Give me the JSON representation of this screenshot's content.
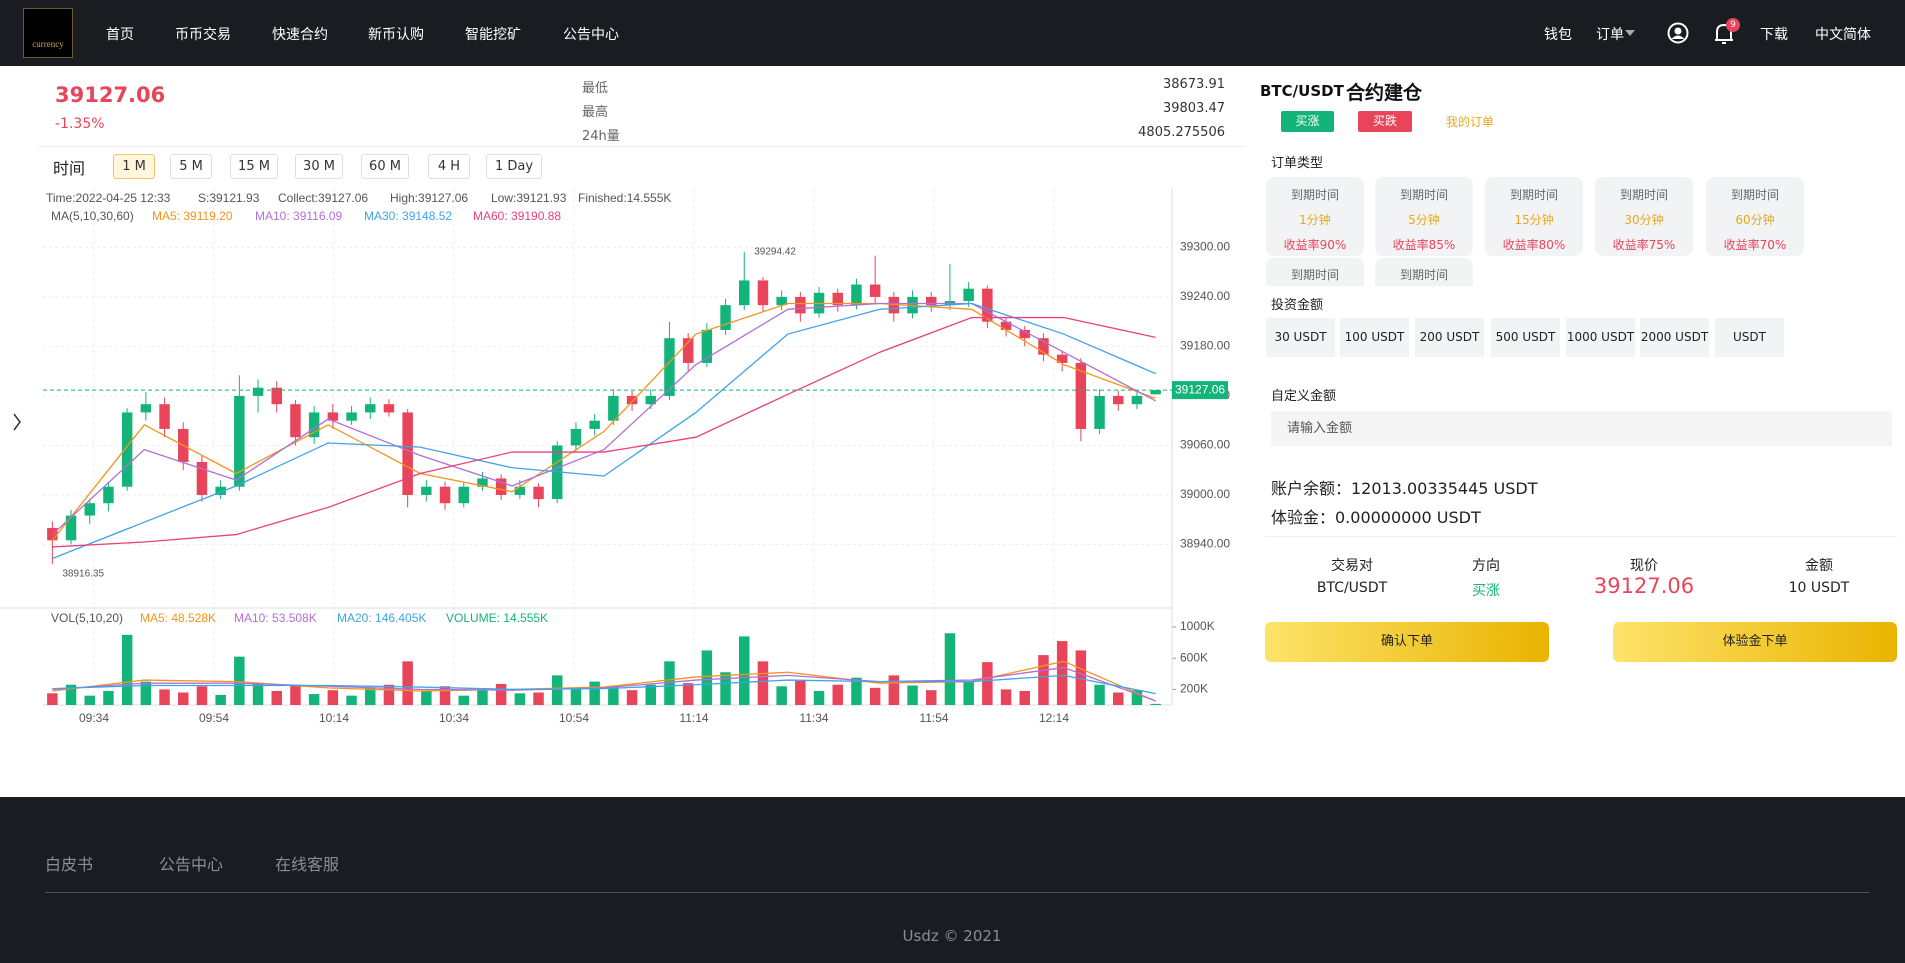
{
  "header": {
    "logo": "currency",
    "nav": [
      "首页",
      "币币交易",
      "快速合约",
      "新币认购",
      "智能挖矿",
      "公告中心"
    ],
    "right": [
      "钱包",
      "订单",
      "下载",
      "中文简体"
    ],
    "badge": 9
  },
  "ticker": {
    "price": 39127.06,
    "change": "-1.35%",
    "stats": [
      {
        "label": "最低",
        "value": 38673.91
      },
      {
        "label": "最高",
        "value": 39803.47
      },
      {
        "label": "24h量",
        "value": 4805.275506
      }
    ]
  },
  "timeframes": [
    "时间",
    "1 M",
    "5 M",
    "15 M",
    "30 M",
    "60 M",
    "4 H",
    "1 Day"
  ],
  "chart_data": {
    "type": "candlestick",
    "info": [
      "Time:2022-04-25 12:33",
      "S:39121.93",
      "Collect:39127.06",
      "High:39127.06",
      "Low:39121.93",
      "Finished:14.555K"
    ],
    "ma_title": "MA(5,10,30,60)",
    "vol_title": "VOL(5,10,20)",
    "up_color": "#13b47a",
    "down_color": "#e8445a",
    "candles": [
      [
        38960,
        38968,
        38916.35,
        38945
      ],
      [
        38945,
        38982,
        38940,
        38975
      ],
      [
        38975,
        38995,
        38965,
        38990
      ],
      [
        38990,
        39015,
        38980,
        39010
      ],
      [
        39010,
        39105,
        39005,
        39100
      ],
      [
        39100,
        39125,
        39090,
        39110
      ],
      [
        39110,
        39118,
        39070,
        39080
      ],
      [
        39080,
        39088,
        39030,
        39040
      ],
      [
        39040,
        39048,
        38992,
        39000
      ],
      [
        39000,
        39018,
        38995,
        39010
      ],
      [
        39010,
        39145,
        39005,
        39120
      ],
      [
        39120,
        39140,
        39100,
        39130
      ],
      [
        39130,
        39138,
        39100,
        39110
      ],
      [
        39110,
        39115,
        39060,
        39070
      ],
      [
        39070,
        39108,
        39062,
        39100
      ],
      [
        39100,
        39110,
        39080,
        39090
      ],
      [
        39090,
        39108,
        39085,
        39100
      ],
      [
        39100,
        39118,
        39092,
        39110
      ],
      [
        39110,
        39116,
        39095,
        39100
      ],
      [
        39100,
        39104,
        38985,
        39000
      ],
      [
        39000,
        39018,
        38992,
        39010
      ],
      [
        39010,
        39016,
        38982,
        38990
      ],
      [
        38990,
        39016,
        38985,
        39010
      ],
      [
        39010,
        39028,
        39005,
        39020
      ],
      [
        39020,
        39025,
        38994,
        39000
      ],
      [
        39000,
        39018,
        38995,
        39010
      ],
      [
        39010,
        39014,
        38985,
        38995
      ],
      [
        38995,
        39065,
        38990,
        39060
      ],
      [
        39060,
        39088,
        39052,
        39080
      ],
      [
        39080,
        39098,
        39072,
        39090
      ],
      [
        39090,
        39128,
        39085,
        39120
      ],
      [
        39120,
        39126,
        39102,
        39110
      ],
      [
        39110,
        39128,
        39104,
        39120
      ],
      [
        39120,
        39210,
        39115,
        39190
      ],
      [
        39190,
        39196,
        39150,
        39160
      ],
      [
        39160,
        39208,
        39155,
        39200
      ],
      [
        39200,
        39238,
        39194,
        39230
      ],
      [
        39230,
        39294.42,
        39224,
        39260
      ],
      [
        39260,
        39264,
        39222,
        39230
      ],
      [
        39230,
        39248,
        39224,
        39240
      ],
      [
        39240,
        39246,
        39210,
        39220
      ],
      [
        39220,
        39252,
        39215,
        39245
      ],
      [
        39245,
        39250,
        39222,
        39230
      ],
      [
        39230,
        39262,
        39225,
        39255
      ],
      [
        39255,
        39290,
        39232,
        39240
      ],
      [
        39240,
        39246,
        39210,
        39220
      ],
      [
        39220,
        39248,
        39214,
        39240
      ],
      [
        39240,
        39246,
        39222,
        39230
      ],
      [
        39230,
        39280,
        39224,
        39235
      ],
      [
        39235,
        39258,
        39228,
        39250
      ],
      [
        39250,
        39254,
        39202,
        39210
      ],
      [
        39210,
        39216,
        39192,
        39200
      ],
      [
        39200,
        39205,
        39180,
        39190
      ],
      [
        39190,
        39196,
        39162,
        39170
      ],
      [
        39170,
        39175,
        39150,
        39160
      ],
      [
        39160,
        39166,
        39065,
        39080
      ],
      [
        39080,
        39128,
        39074,
        39120
      ],
      [
        39120,
        39126,
        39102,
        39110
      ],
      [
        39110,
        39126,
        39104,
        39120
      ],
      [
        39121.93,
        39127.06,
        39121.93,
        39127.06
      ]
    ],
    "volumes": [
      150,
      260,
      120,
      180,
      900,
      300,
      200,
      160,
      240,
      130,
      620,
      280,
      180,
      260,
      140,
      190,
      120,
      220,
      260,
      560,
      180,
      240,
      120,
      200,
      270,
      150,
      160,
      380,
      220,
      300,
      240,
      190,
      260,
      560,
      280,
      700,
      420,
      880,
      560,
      240,
      310,
      180,
      260,
      350,
      220,
      380,
      250,
      190,
      920,
      300,
      550,
      200,
      180,
      640,
      820,
      700,
      260,
      160,
      190,
      14.555
    ],
    "ma": [
      {
        "name": "MA5: 39119.20",
        "color": "#f7931a",
        "values": [
          38945,
          39085,
          39026,
          39085,
          39026,
          39004,
          39077,
          39195,
          39232,
          39232,
          39225,
          39158,
          39117
        ]
      },
      {
        "name": "MA10: 39116.09",
        "color": "#b36fd6",
        "values": [
          38952,
          39055,
          39018,
          39092,
          39048,
          39011,
          39055,
          39158,
          39225,
          39232,
          39232,
          39173,
          39114
        ]
      },
      {
        "name": "MA30: 39148.52",
        "color": "#3fa3e8",
        "values": [
          38923,
          38967,
          39011,
          39063,
          39058,
          39033,
          39023,
          39100,
          39195,
          39225,
          39232,
          39195,
          39147
        ]
      },
      {
        "name": "MA60: 39190.88",
        "color": "#e8417f",
        "values": [
          38937,
          38943,
          38952,
          38985,
          39026,
          39052,
          39052,
          39070,
          39122,
          39173,
          39215,
          39215,
          39191
        ]
      }
    ],
    "vol_ma": [
      {
        "name": "MA5: 48.528K",
        "color": "#f7931a",
        "values": [
          180,
          320,
          300,
          220,
          180,
          200,
          230,
          360,
          420,
          280,
          300,
          560,
          48.528
        ]
      },
      {
        "name": "MA10: 53.508K",
        "color": "#b36fd6",
        "values": [
          200,
          280,
          280,
          240,
          200,
          190,
          220,
          320,
          380,
          300,
          320,
          480,
          53.508
        ]
      },
      {
        "name": "MA20: 146.405K",
        "color": "#3fa3e8",
        "values": [
          210,
          250,
          250,
          250,
          230,
          200,
          210,
          260,
          320,
          300,
          300,
          380,
          146.405
        ]
      }
    ],
    "vol_label": "VOLUME: 14.555K",
    "vol_label_color": "#13b47a",
    "max_label": 39294.42,
    "min_label": 38916.35,
    "last_price": 39127.06,
    "ylim": [
      38863,
      39372
    ],
    "yticks": [
      {
        "value": 38940,
        "label": "38940.00"
      },
      {
        "value": 39000,
        "label": "39000.00"
      },
      {
        "value": 39060,
        "label": "39060.00"
      },
      {
        "value": 39120,
        "label": "39120.00"
      },
      {
        "value": 39180,
        "label": "39180.00"
      },
      {
        "value": 39240,
        "label": "39240.00"
      },
      {
        "value": 39300,
        "label": "39300.00"
      }
    ],
    "vol_ylim": [
      0,
      1244
    ],
    "vol_yticks": [
      {
        "value": 200,
        "label": "200K"
      },
      {
        "value": 600,
        "label": "600K"
      },
      {
        "value": 1000,
        "label": "1000K"
      }
    ],
    "xlim": [
      565.5,
      752.5
    ],
    "xticks": [
      {
        "value": 574,
        "label": "09:34"
      },
      {
        "value": 594,
        "label": "09:54"
      },
      {
        "value": 614,
        "label": "10:14"
      },
      {
        "value": 634,
        "label": "10:34"
      },
      {
        "value": 654,
        "label": "10:54"
      },
      {
        "value": 674,
        "label": "11:14"
      },
      {
        "value": 694,
        "label": "11:34"
      },
      {
        "value": 714,
        "label": "11:54"
      },
      {
        "value": 734,
        "label": "12:14"
      }
    ],
    "grid": true
  },
  "trade": {
    "pair": "BTC/USDT",
    "title": "合约建仓",
    "buy_up": "买涨",
    "buy_down": "买跌",
    "my_orders": "我的订单",
    "order_type_label": "订单类型",
    "cards": [
      {
        "label": "到期时间",
        "duration": "1分钟",
        "rate": "收益率90%"
      },
      {
        "label": "到期时间",
        "duration": "5分钟",
        "rate": "收益率85%"
      },
      {
        "label": "到期时间",
        "duration": "15分钟",
        "rate": "收益率80%"
      },
      {
        "label": "到期时间",
        "duration": "30分钟",
        "rate": "收益率75%"
      },
      {
        "label": "到期时间",
        "duration": "60分钟",
        "rate": "收益率70%"
      }
    ],
    "cards_row2": [
      "到期时间",
      "到期时间"
    ],
    "amount_label": "投资金额",
    "amounts": [
      "30 USDT",
      "100 USDT",
      "200 USDT",
      "500 USDT",
      "1000 USDT",
      "2000 USDT",
      "USDT"
    ],
    "custom_label": "自定义金额",
    "placeholder": "请输入金额",
    "balance": "账户余额：12013.00335445 USDT",
    "trial": "体验金：0.00000000 USDT",
    "table": {
      "headers": [
        "交易对",
        "方向",
        "现价",
        "金额"
      ],
      "row": [
        "BTC/USDT",
        "买涨",
        39127.06,
        "10 USDT"
      ]
    },
    "confirm": "确认下单",
    "trial_order": "体验金下单"
  },
  "footer": {
    "links": [
      "白皮书",
      "公告中心",
      "在线客服"
    ],
    "copyright": "Usdz © 2021"
  }
}
